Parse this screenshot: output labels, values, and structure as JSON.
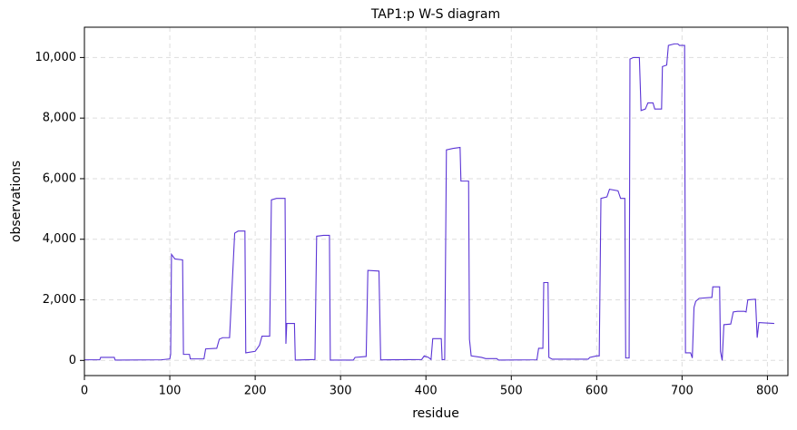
{
  "chart_data": {
    "type": "line",
    "title": "TAP1:p W-S diagram",
    "x_label": "residue",
    "y_label": "observations",
    "x": [
      0,
      18,
      19,
      35,
      36,
      90,
      100,
      101,
      102,
      106,
      115,
      116,
      123,
      124,
      140,
      142,
      155,
      158,
      162,
      170,
      176,
      180,
      188,
      189,
      200,
      205,
      208,
      217,
      219,
      225,
      235,
      236,
      237,
      246,
      247,
      270,
      272,
      280,
      287,
      288,
      315,
      317,
      330,
      332,
      345,
      347,
      395,
      398,
      403,
      406,
      408,
      418,
      419,
      422,
      424,
      432,
      440,
      441,
      450,
      451,
      453,
      465,
      470,
      483,
      485,
      530,
      532,
      537,
      538,
      543,
      544,
      548,
      590,
      592,
      600,
      603,
      605,
      612,
      615,
      625,
      628,
      633,
      634,
      638,
      639,
      643,
      650,
      652,
      657,
      660,
      666,
      668,
      676,
      677,
      682,
      684,
      691,
      695,
      697,
      703,
      704,
      710,
      712,
      714,
      716,
      720,
      735,
      736,
      744,
      745,
      747,
      749,
      757,
      760,
      765,
      773,
      775,
      777,
      786,
      788,
      790,
      808
    ],
    "series": [
      {
        "name": "observations",
        "color": "#5b35d5",
        "values": [
          20,
          20,
          100,
          100,
          10,
          20,
          50,
          200,
          3500,
          3350,
          3320,
          200,
          200,
          50,
          50,
          380,
          400,
          700,
          750,
          750,
          4200,
          4270,
          4270,
          250,
          300,
          500,
          800,
          800,
          5300,
          5350,
          5350,
          550,
          1220,
          1220,
          10,
          30,
          4100,
          4130,
          4130,
          10,
          10,
          100,
          130,
          2970,
          2950,
          20,
          30,
          150,
          100,
          30,
          720,
          720,
          20,
          30,
          6950,
          7000,
          7030,
          5920,
          5920,
          700,
          150,
          100,
          60,
          60,
          10,
          20,
          400,
          400,
          2570,
          2570,
          100,
          40,
          40,
          100,
          150,
          150,
          5350,
          5400,
          5650,
          5600,
          5350,
          5350,
          80,
          80,
          9950,
          10000,
          10000,
          8250,
          8300,
          8500,
          8500,
          8300,
          8300,
          9700,
          9750,
          10400,
          10450,
          10450,
          10400,
          10400,
          250,
          250,
          80,
          1750,
          1950,
          2050,
          2080,
          2430,
          2430,
          300,
          0,
          1180,
          1200,
          1600,
          1620,
          1620,
          1600,
          2000,
          2020,
          750,
          1250,
          1220
        ]
      }
    ],
    "xlim": [
      0,
      824
    ],
    "ylim": [
      -500,
      11000
    ],
    "xticks": [
      0,
      100,
      200,
      300,
      400,
      500,
      600,
      700,
      800
    ],
    "yticks": [
      0,
      {
        "value": 2000,
        "label": "2,000"
      },
      {
        "value": 4000,
        "label": "4,000"
      },
      {
        "value": 6000,
        "label": "6,000"
      },
      {
        "value": 8000,
        "label": "8,000"
      },
      {
        "value": 10000,
        "label": "10,000"
      }
    ],
    "grid": true
  }
}
